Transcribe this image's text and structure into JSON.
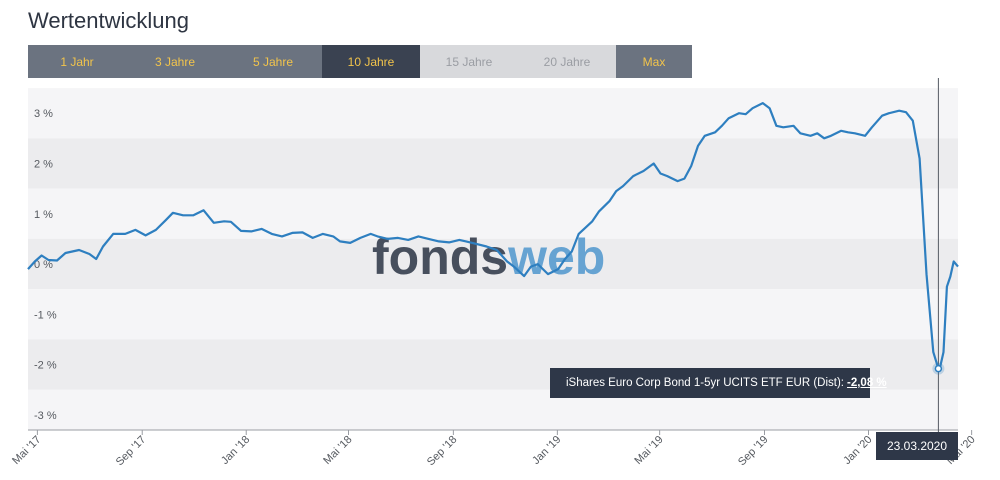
{
  "title": "Wertentwicklung",
  "tabs": [
    {
      "label": "1 Jahr",
      "state": "enabled"
    },
    {
      "label": "3 Jahre",
      "state": "enabled"
    },
    {
      "label": "5 Jahre",
      "state": "enabled"
    },
    {
      "label": "10 Jahre",
      "state": "active"
    },
    {
      "label": "15 Jahre",
      "state": "disabled"
    },
    {
      "label": "20 Jahre",
      "state": "disabled"
    },
    {
      "label": "Max",
      "state": "enabled"
    }
  ],
  "watermark": {
    "part1": "fonds",
    "part2": "web"
  },
  "tooltip": {
    "series": "iShares Euro Corp Bond 1-5yr UCITS ETF EUR (Dist):",
    "value": "-2,08 %"
  },
  "crosshair_date": "23.03.2020",
  "colors": {
    "line": "#2e7fc0",
    "band_dark": "#ececee",
    "band_light": "#f5f5f7",
    "tab_active": "#3a4251",
    "tab_enabled": "#6b7380",
    "tab_label": "#f2c44b",
    "tooltip_bg": "#2e3748",
    "watermark_dark": "#3a4251",
    "watermark_light": "#5b9dd0"
  },
  "chart_data": {
    "type": "line",
    "ylim": [
      -3.3,
      3.7
    ],
    "yticks": [
      3,
      2,
      1,
      0,
      -1,
      -2,
      -3
    ],
    "ytick_labels": [
      "3 %",
      "2 %",
      "1 %",
      "0 %",
      "-1 %",
      "-2 %",
      "-3 %"
    ],
    "xlim": [
      "2017-04-20",
      "2020-04-15"
    ],
    "xticks": [
      "2017-05-01",
      "2017-09-01",
      "2018-01-01",
      "2018-05-01",
      "2018-09-01",
      "2019-01-01",
      "2019-05-01",
      "2019-09-01",
      "2020-01-01",
      "2020-05-01"
    ],
    "xtick_labels": [
      "Mai '17",
      "Sep '17",
      "Jan '18",
      "Mai '18",
      "Sep '18",
      "Jan '19",
      "Mai '19",
      "Sep '19",
      "Jan '20",
      "Mai '20"
    ],
    "highlight": {
      "x": "2020-03-23",
      "y": -2.08
    },
    "series": [
      {
        "name": "iShares Euro Corp Bond 1-5yr UCITS ETF EUR (Dist)",
        "points": [
          [
            "2017-04-20",
            -0.1
          ],
          [
            "2017-04-28",
            0.05
          ],
          [
            "2017-05-06",
            0.17
          ],
          [
            "2017-05-14",
            0.08
          ],
          [
            "2017-05-24",
            0.07
          ],
          [
            "2017-06-03",
            0.22
          ],
          [
            "2017-06-11",
            0.25
          ],
          [
            "2017-06-19",
            0.28
          ],
          [
            "2017-07-01",
            0.2
          ],
          [
            "2017-07-09",
            0.1
          ],
          [
            "2017-07-17",
            0.35
          ],
          [
            "2017-07-29",
            0.6
          ],
          [
            "2017-08-12",
            0.6
          ],
          [
            "2017-08-24",
            0.68
          ],
          [
            "2017-09-05",
            0.57
          ],
          [
            "2017-09-17",
            0.68
          ],
          [
            "2017-09-29",
            0.88
          ],
          [
            "2017-10-07",
            1.02
          ],
          [
            "2017-10-19",
            0.97
          ],
          [
            "2017-10-31",
            0.97
          ],
          [
            "2017-11-12",
            1.07
          ],
          [
            "2017-11-24",
            0.82
          ],
          [
            "2017-12-06",
            0.85
          ],
          [
            "2017-12-14",
            0.84
          ],
          [
            "2017-12-26",
            0.66
          ],
          [
            "2018-01-07",
            0.65
          ],
          [
            "2018-01-19",
            0.7
          ],
          [
            "2018-01-31",
            0.6
          ],
          [
            "2018-02-12",
            0.55
          ],
          [
            "2018-02-24",
            0.62
          ],
          [
            "2018-03-08",
            0.63
          ],
          [
            "2018-03-20",
            0.52
          ],
          [
            "2018-04-01",
            0.6
          ],
          [
            "2018-04-13",
            0.55
          ],
          [
            "2018-04-21",
            0.45
          ],
          [
            "2018-05-03",
            0.42
          ],
          [
            "2018-05-15",
            0.52
          ],
          [
            "2018-05-27",
            0.6
          ],
          [
            "2018-06-04",
            0.55
          ],
          [
            "2018-06-16",
            0.5
          ],
          [
            "2018-06-28",
            0.52
          ],
          [
            "2018-07-10",
            0.48
          ],
          [
            "2018-07-22",
            0.55
          ],
          [
            "2018-08-03",
            0.5
          ],
          [
            "2018-08-15",
            0.45
          ],
          [
            "2018-08-27",
            0.43
          ],
          [
            "2018-09-08",
            0.48
          ],
          [
            "2018-09-16",
            0.45
          ],
          [
            "2018-09-28",
            0.4
          ],
          [
            "2018-10-10",
            0.35
          ],
          [
            "2018-10-22",
            0.28
          ],
          [
            "2018-11-03",
            0.05
          ],
          [
            "2018-11-11",
            -0.05
          ],
          [
            "2018-11-23",
            -0.24
          ],
          [
            "2018-12-01",
            -0.05
          ],
          [
            "2018-12-09",
            0.0
          ],
          [
            "2018-12-21",
            -0.2
          ],
          [
            "2019-01-02",
            -0.1
          ],
          [
            "2019-01-10",
            0.1
          ],
          [
            "2019-01-18",
            0.25
          ],
          [
            "2019-01-26",
            0.6
          ],
          [
            "2019-02-11",
            0.85
          ],
          [
            "2019-02-19",
            1.05
          ],
          [
            "2019-03-03",
            1.25
          ],
          [
            "2019-03-11",
            1.45
          ],
          [
            "2019-03-19",
            1.55
          ],
          [
            "2019-03-31",
            1.75
          ],
          [
            "2019-04-12",
            1.85
          ],
          [
            "2019-04-24",
            2.0
          ],
          [
            "2019-05-02",
            1.8
          ],
          [
            "2019-05-10",
            1.75
          ],
          [
            "2019-05-22",
            1.65
          ],
          [
            "2019-05-30",
            1.7
          ],
          [
            "2019-06-07",
            1.95
          ],
          [
            "2019-06-15",
            2.35
          ],
          [
            "2019-06-23",
            2.55
          ],
          [
            "2019-07-05",
            2.62
          ],
          [
            "2019-07-13",
            2.75
          ],
          [
            "2019-07-21",
            2.9
          ],
          [
            "2019-08-02",
            3.0
          ],
          [
            "2019-08-10",
            2.98
          ],
          [
            "2019-08-18",
            3.1
          ],
          [
            "2019-08-30",
            3.2
          ],
          [
            "2019-09-07",
            3.1
          ],
          [
            "2019-09-15",
            2.75
          ],
          [
            "2019-09-23",
            2.72
          ],
          [
            "2019-10-05",
            2.75
          ],
          [
            "2019-10-13",
            2.6
          ],
          [
            "2019-10-25",
            2.55
          ],
          [
            "2019-11-02",
            2.6
          ],
          [
            "2019-11-10",
            2.5
          ],
          [
            "2019-11-18",
            2.55
          ],
          [
            "2019-11-30",
            2.65
          ],
          [
            "2019-12-08",
            2.62
          ],
          [
            "2019-12-16",
            2.6
          ],
          [
            "2019-12-28",
            2.55
          ],
          [
            "2020-01-05",
            2.72
          ],
          [
            "2020-01-17",
            2.95
          ],
          [
            "2020-01-25",
            3.0
          ],
          [
            "2020-02-06",
            3.05
          ],
          [
            "2020-02-14",
            3.02
          ],
          [
            "2020-02-22",
            2.85
          ],
          [
            "2020-03-01",
            2.1
          ],
          [
            "2020-03-09",
            -0.2
          ],
          [
            "2020-03-17",
            -1.75
          ],
          [
            "2020-03-23",
            -2.08
          ],
          [
            "2020-03-25",
            -2.05
          ],
          [
            "2020-03-29",
            -1.75
          ],
          [
            "2020-04-02",
            -0.45
          ],
          [
            "2020-04-06",
            -0.25
          ],
          [
            "2020-04-10",
            0.05
          ],
          [
            "2020-04-15",
            -0.05
          ]
        ]
      }
    ]
  }
}
